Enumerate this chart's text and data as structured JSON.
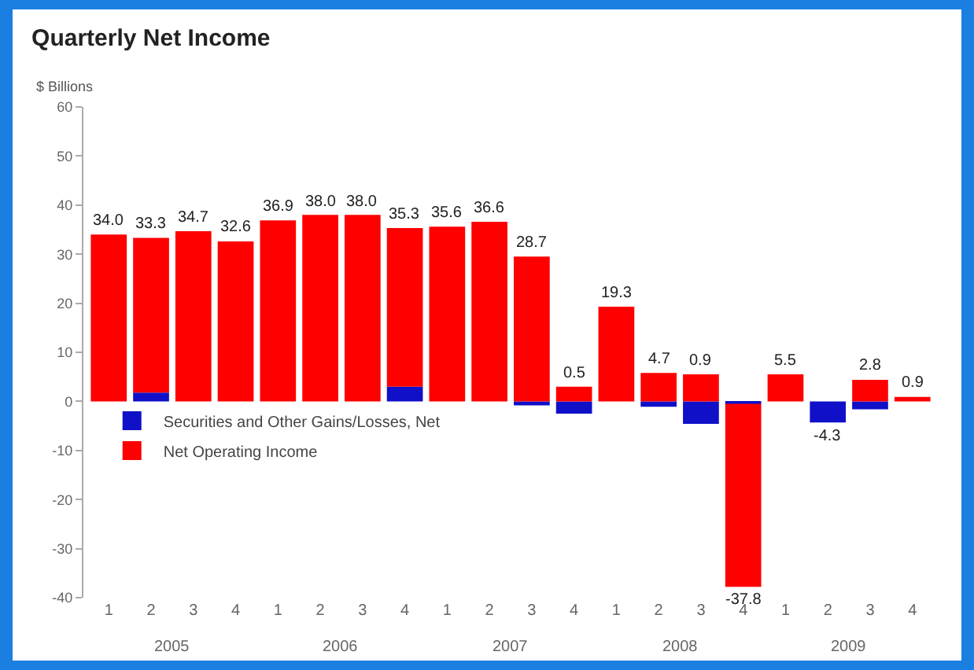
{
  "chart_data": {
    "type": "bar",
    "title": "Quarterly Net Income",
    "ylabel": "$ Billions",
    "categories": [
      "1",
      "2",
      "3",
      "4",
      "1",
      "2",
      "3",
      "4",
      "1",
      "2",
      "3",
      "4",
      "1",
      "2",
      "3",
      "4",
      "1",
      "2",
      "3",
      "4"
    ],
    "annotations": [
      "2005",
      "2006",
      "2007",
      "2008",
      "2009"
    ],
    "stacked": true,
    "series": [
      {
        "name": "Securities and Other Gains/Losses, Net",
        "color": "#1010c8",
        "values": [
          0,
          1.8,
          0,
          0,
          0,
          0,
          0,
          3.0,
          0,
          0,
          -0.8,
          -2.5,
          0,
          -1.1,
          -4.6,
          -0.5,
          0,
          -4.3,
          -1.6,
          0
        ]
      },
      {
        "name": "Net Operating Income",
        "color": "#ff0000",
        "values": [
          34.0,
          31.5,
          34.7,
          32.6,
          36.9,
          38.0,
          38.0,
          32.3,
          35.6,
          36.6,
          29.5,
          3.0,
          19.3,
          5.8,
          5.5,
          -37.3,
          5.5,
          0,
          4.4,
          0.9
        ]
      }
    ],
    "totals": [
      "34.0",
      "33.3",
      "34.7",
      "32.6",
      "36.9",
      "38.0",
      "38.0",
      "35.3",
      "35.6",
      "36.6",
      "28.7",
      "0.5",
      "19.3",
      "4.7",
      "0.9",
      "-37.8",
      "5.5",
      "-4.3",
      "2.8",
      "0.9"
    ],
    "ylim": [
      -40,
      60
    ],
    "yticks": [
      -40,
      -30,
      -20,
      -10,
      0,
      10,
      20,
      30,
      40,
      50,
      60
    ],
    "grid": false,
    "legend": "left"
  }
}
